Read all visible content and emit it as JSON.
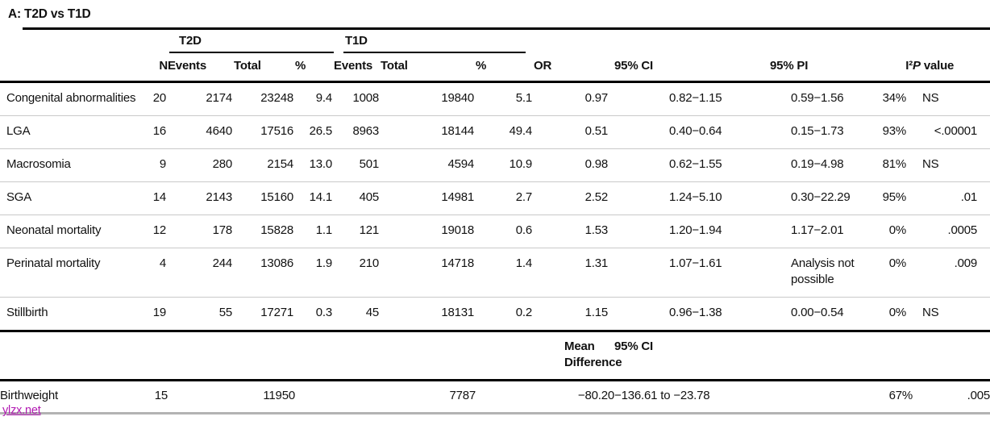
{
  "title": "A: T2D vs T1D",
  "table": {
    "group_headers": {
      "t2d": "T2D",
      "t1d": "T1D"
    },
    "col_headers": {
      "n": "N",
      "events": "Events",
      "total": "Total",
      "pct": "%",
      "or": "OR",
      "ci": "95% CI",
      "pi": "95% PI",
      "i2": "I²",
      "p_italic": "P",
      "p_rest": "value"
    },
    "rows": [
      {
        "outcome": "Congenital abnormalities",
        "n": "20",
        "t2d_events": "2174",
        "t2d_total": "23248",
        "t2d_pct": "9.4",
        "t1d_events": "1008",
        "t1d_total": "19840",
        "t1d_pct": "5.1",
        "or": "0.97",
        "ci": "0.82−1.15",
        "pi": "0.59−1.56",
        "i2": "34%",
        "p": "NS"
      },
      {
        "outcome": "LGA",
        "n": "16",
        "t2d_events": "4640",
        "t2d_total": "17516",
        "t2d_pct": "26.5",
        "t1d_events": "8963",
        "t1d_total": "18144",
        "t1d_pct": "49.4",
        "or": "0.51",
        "ci": "0.40−0.64",
        "pi": "0.15−1.73",
        "i2": "93%",
        "p": "<.00001"
      },
      {
        "outcome": "Macrosomia",
        "n": "9",
        "t2d_events": "280",
        "t2d_total": "2154",
        "t2d_pct": "13.0",
        "t1d_events": "501",
        "t1d_total": "4594",
        "t1d_pct": "10.9",
        "or": "0.98",
        "ci": "0.62−1.55",
        "pi": "0.19−4.98",
        "i2": "81%",
        "p": "NS"
      },
      {
        "outcome": "SGA",
        "n": "14",
        "t2d_events": "2143",
        "t2d_total": "15160",
        "t2d_pct": "14.1",
        "t1d_events": "405",
        "t1d_total": "14981",
        "t1d_pct": "2.7",
        "or": "2.52",
        "ci": "1.24−5.10",
        "pi": "0.30−22.29",
        "i2": "95%",
        "p": ".01"
      },
      {
        "outcome": "Neonatal mortality",
        "n": "12",
        "t2d_events": "178",
        "t2d_total": "15828",
        "t2d_pct": "1.1",
        "t1d_events": "121",
        "t1d_total": "19018",
        "t1d_pct": "0.6",
        "or": "1.53",
        "ci": "1.20−1.94",
        "pi": "1.17−2.01",
        "i2": "0%",
        "p": ".0005"
      },
      {
        "outcome": "Perinatal mortality",
        "n": "4",
        "t2d_events": "244",
        "t2d_total": "13086",
        "t2d_pct": "1.9",
        "t1d_events": "210",
        "t1d_total": "14718",
        "t1d_pct": "1.4",
        "or": "1.31",
        "ci": "1.07−1.61",
        "pi": "Analysis not possible",
        "i2": "0%",
        "p": ".009"
      },
      {
        "outcome": "Stillbirth",
        "n": "19",
        "t2d_events": "55",
        "t2d_total": "17271",
        "t2d_pct": "0.3",
        "t1d_events": "45",
        "t1d_total": "18131",
        "t1d_pct": "0.2",
        "or": "1.15",
        "ci": "0.96−1.38",
        "pi": "0.00−0.54",
        "i2": "0%",
        "p": "NS"
      }
    ],
    "subsection": {
      "mean_diff_label": "Mean Difference",
      "ci_label": "95% CI"
    },
    "birthweight_row": {
      "outcome": "Birthweight",
      "n": "15",
      "t2d_total": "11950",
      "t1d_total": "7787",
      "mean_difference": "−80.20",
      "ci": "−136.61 to −23.78",
      "i2": "67%",
      "p": ".005"
    }
  },
  "watermark": "ylzx.net"
}
